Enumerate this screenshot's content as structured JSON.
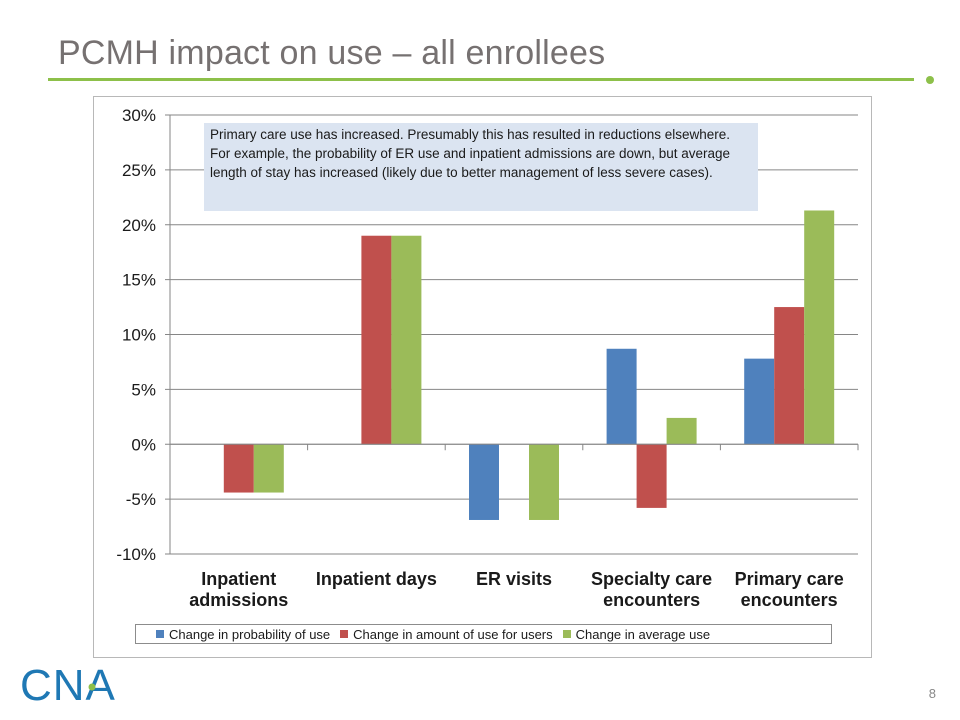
{
  "slide": {
    "title": "PCMH impact on use – all enrollees",
    "page_number": "8",
    "logo_text": "CNA",
    "accent_color": "#8dc04a"
  },
  "note": "Primary care use has increased. Presumably this has resulted in reductions elsewhere. For example, the probability of ER use and inpatient admissions are down, but average length of stay has increased (likely due to better management of less severe cases).",
  "chart_data": {
    "type": "bar",
    "categories": [
      [
        "Inpatient",
        "admissions"
      ],
      [
        "Inpatient days"
      ],
      [
        "ER visits"
      ],
      [
        "Specialty care",
        "encounters"
      ],
      [
        "Primary care",
        "encounters"
      ]
    ],
    "series": [
      {
        "name": "Change in probability of use",
        "color": "#4f81bd",
        "values": [
          null,
          null,
          -6.9,
          8.7,
          7.8
        ]
      },
      {
        "name": "Change in amount of use for users",
        "color": "#c0504d",
        "values": [
          -4.4,
          19.0,
          null,
          -5.8,
          12.5
        ]
      },
      {
        "name": "Change in average use",
        "color": "#9bbb59",
        "values": [
          -4.4,
          19.0,
          -6.9,
          2.4,
          21.3
        ]
      }
    ],
    "ylim": [
      -10,
      30
    ],
    "yticks": [
      30,
      25,
      20,
      15,
      10,
      5,
      0,
      -5,
      -10
    ],
    "ytick_labels": [
      "30%",
      "25%",
      "20%",
      "15%",
      "10%",
      "5%",
      "0%",
      "-5%",
      "-10%"
    ],
    "grid": true,
    "legend_position": "bottom"
  }
}
